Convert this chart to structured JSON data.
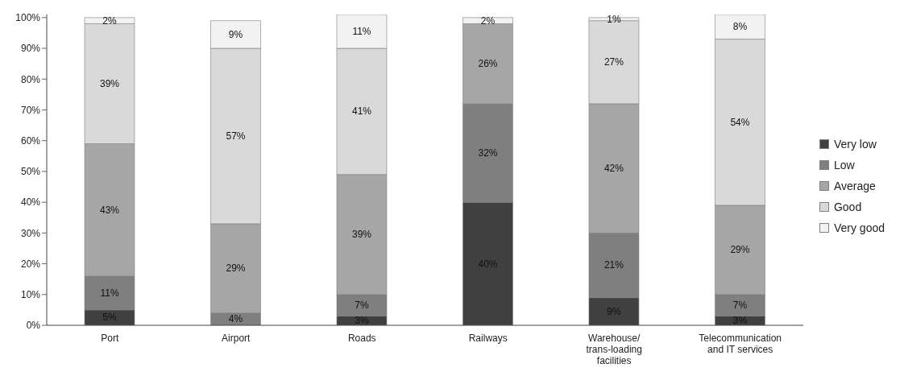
{
  "chart_data": {
    "type": "bar",
    "stacked": true,
    "categories": [
      "Port",
      "Airport",
      "Roads",
      "Railways",
      "Warehouse/ trans-loading facilities",
      "Telecommunication and IT services"
    ],
    "series": [
      {
        "name": "Very low",
        "color": "#404040",
        "values": [
          5,
          null,
          3,
          40,
          9,
          3
        ],
        "value_labels": [
          "5%",
          null,
          "3%",
          "40%",
          "9%",
          "3%"
        ]
      },
      {
        "name": "Low",
        "color": "#7f7f7f",
        "values": [
          11,
          4,
          7,
          32,
          21,
          7
        ],
        "value_labels": [
          "11%",
          "4%",
          "7%",
          "32%",
          "21%",
          "7%"
        ]
      },
      {
        "name": "Average",
        "color": "#a6a6a6",
        "values": [
          43,
          29,
          39,
          26,
          42,
          29
        ],
        "value_labels": [
          "43%",
          "29%",
          "39%",
          "26%",
          "42%",
          "29%"
        ]
      },
      {
        "name": "Good",
        "color": "#d9d9d9",
        "values": [
          39,
          57,
          41,
          null,
          27,
          54
        ],
        "value_labels": [
          "39%",
          "57%",
          "41%",
          null,
          "27%",
          "54%"
        ]
      },
      {
        "name": "Very good",
        "color": "#f2f2f2",
        "values": [
          2,
          9,
          11,
          2,
          1,
          8
        ],
        "value_labels": [
          "2%",
          "9%",
          "11%",
          "2%",
          "1%",
          "8%"
        ]
      }
    ],
    "ylim": [
      0,
      101
    ],
    "yticks": [
      {
        "value": 0,
        "label": "0%"
      },
      {
        "value": 10,
        "label": "10%"
      },
      {
        "value": 20,
        "label": "20%"
      },
      {
        "value": 30,
        "label": "30%"
      },
      {
        "value": 40,
        "label": "40%"
      },
      {
        "value": 50,
        "label": "50%"
      },
      {
        "value": 60,
        "label": "60%"
      },
      {
        "value": 70,
        "label": "70%"
      },
      {
        "value": 80,
        "label": "80%"
      },
      {
        "value": 90,
        "label": "90%"
      },
      {
        "value": 100,
        "label": "100%"
      }
    ],
    "grid": false,
    "legend": "right"
  }
}
